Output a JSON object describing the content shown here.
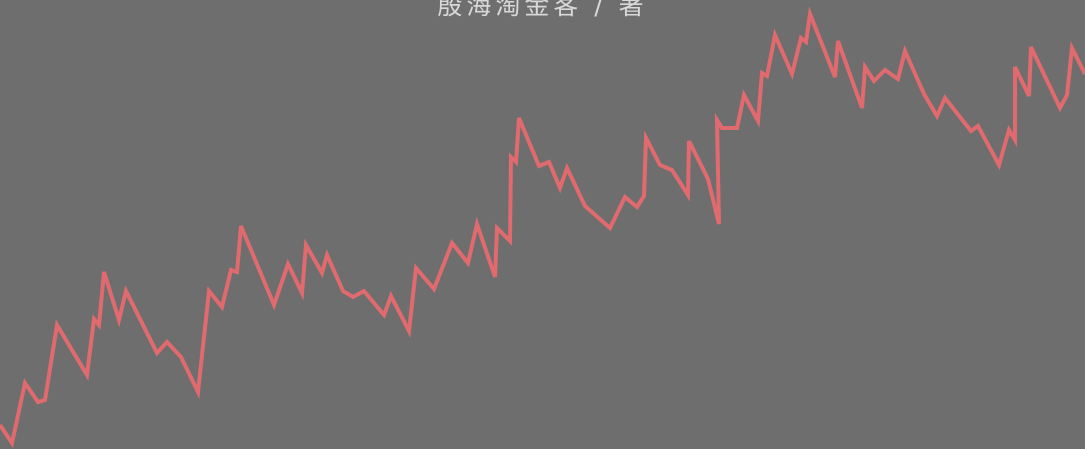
{
  "cover": {
    "author_line": "殷海淘金客 / 著",
    "background_color": "#6e6e6e",
    "line_color": "#e06a6e"
  }
}
